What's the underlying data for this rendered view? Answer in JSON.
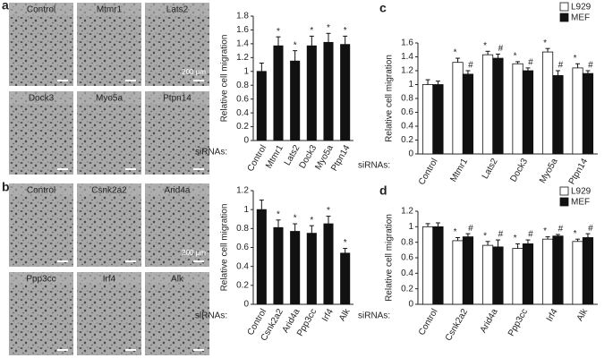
{
  "panels": [
    {
      "label": "a",
      "images": [
        "Control",
        "Mtmr1",
        "Lats2",
        "Dock3",
        "Myo5a",
        "Ptpn14"
      ],
      "scale_bar": "200 μm"
    },
    {
      "label": "b",
      "images": [
        "Control",
        "Csnk2a2",
        "Arid4a",
        "Ppp3cc",
        "Irf4",
        "Alk"
      ],
      "scale_bar": "200 μm"
    },
    {
      "label": "c"
    },
    {
      "label": "d"
    }
  ],
  "chart_data": [
    {
      "type": "bar",
      "y_label": "Relative cell migration",
      "x_label": "siRNAs:",
      "categories": [
        "Control",
        "Mtmr1",
        "Lats2",
        "Dock3",
        "Myo5a",
        "Ptpn14"
      ],
      "values": [
        1.0,
        1.37,
        1.15,
        1.37,
        1.42,
        1.39
      ],
      "errors": [
        0.12,
        0.13,
        0.15,
        0.14,
        0.13,
        0.12
      ],
      "markers": [
        null,
        "*",
        "*",
        "*",
        "*",
        "*"
      ],
      "color": "#111111",
      "ylim": [
        0,
        1.8
      ],
      "yticks": [
        0,
        0.2,
        0.4,
        0.6,
        0.8,
        1,
        1.2,
        1.4,
        1.6,
        1.8
      ]
    },
    {
      "type": "bar",
      "y_label": "Relative cell migration",
      "x_label": "siRNAs:",
      "categories": [
        "Control",
        "Csnk2a2",
        "Arid4a",
        "Ppp3cc",
        "Irf4",
        "Alk"
      ],
      "values": [
        1.0,
        0.81,
        0.77,
        0.75,
        0.85,
        0.54
      ],
      "errors": [
        0.1,
        0.08,
        0.08,
        0.08,
        0.08,
        0.05
      ],
      "markers": [
        null,
        "*",
        "*",
        "*",
        "*",
        "*"
      ],
      "color": "#111111",
      "ylim": [
        0,
        1.2
      ],
      "yticks": [
        0,
        0.2,
        0.4,
        0.6,
        0.8,
        1,
        1.2
      ]
    },
    {
      "type": "grouped_bar",
      "y_label": "Relative cell migration",
      "x_label": "siRNAs:",
      "categories": [
        "Control",
        "Mtmr1",
        "Lats2",
        "Dock3",
        "Myo5a",
        "Ptpn14"
      ],
      "series": [
        {
          "name": "L929",
          "color": "#ffffff",
          "values": [
            1.0,
            1.32,
            1.43,
            1.3,
            1.47,
            1.24
          ],
          "errors": [
            0.07,
            0.06,
            0.05,
            0.03,
            0.05,
            0.06
          ],
          "markers": [
            null,
            "*",
            "*",
            "*",
            "*",
            "*"
          ]
        },
        {
          "name": "MEF",
          "color": "#111111",
          "values": [
            1.0,
            1.15,
            1.38,
            1.2,
            1.13,
            1.16
          ],
          "errors": [
            0.05,
            0.05,
            0.06,
            0.04,
            0.07,
            0.04
          ],
          "markers": [
            null,
            "#",
            "#",
            "#",
            "#",
            "#"
          ]
        }
      ],
      "ylim": [
        0,
        1.6
      ],
      "yticks": [
        0,
        0.2,
        0.4,
        0.6,
        0.8,
        1,
        1.2,
        1.4,
        1.6
      ],
      "legend": "top-right"
    },
    {
      "type": "grouped_bar",
      "y_label": "Relative cell migration",
      "x_label": "siRNAs:",
      "categories": [
        "Control",
        "Csnk2a2",
        "Arid4a",
        "Ppp3cc",
        "Irf4",
        "Alk"
      ],
      "series": [
        {
          "name": "L929",
          "color": "#ffffff",
          "values": [
            1.0,
            0.82,
            0.76,
            0.72,
            0.84,
            0.81
          ],
          "errors": [
            0.04,
            0.04,
            0.05,
            0.06,
            0.03,
            0.03
          ],
          "markers": [
            null,
            "*",
            "*",
            "*",
            "*",
            "*"
          ]
        },
        {
          "name": "MEF",
          "color": "#111111",
          "values": [
            1.0,
            0.87,
            0.74,
            0.78,
            0.88,
            0.86
          ],
          "errors": [
            0.05,
            0.04,
            0.09,
            0.05,
            0.02,
            0.05
          ],
          "markers": [
            null,
            "#",
            "#",
            "#",
            "#",
            "#"
          ]
        }
      ],
      "ylim": [
        0,
        1.2
      ],
      "yticks": [
        0,
        0.2,
        0.4,
        0.6,
        0.8,
        1,
        1.2
      ],
      "legend": "top-right"
    }
  ]
}
